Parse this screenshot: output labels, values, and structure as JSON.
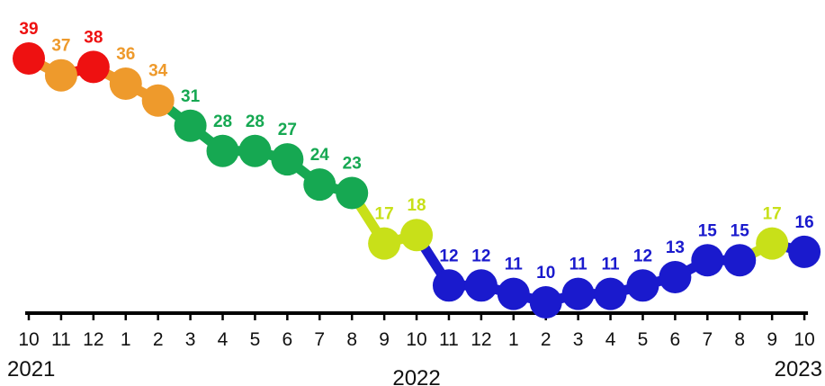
{
  "chart_data": {
    "type": "line",
    "categories": [
      "10",
      "11",
      "12",
      "1",
      "2",
      "3",
      "4",
      "5",
      "6",
      "7",
      "8",
      "9",
      "10",
      "11",
      "12",
      "1",
      "2",
      "3",
      "4",
      "5",
      "6",
      "7",
      "8",
      "9",
      "10"
    ],
    "values": [
      39,
      37,
      38,
      36,
      34,
      31,
      28,
      28,
      27,
      24,
      23,
      17,
      18,
      12,
      12,
      11,
      10,
      11,
      11,
      12,
      13,
      15,
      15,
      17,
      16
    ],
    "point_colors": [
      "#ee1111",
      "#ee9a2c",
      "#ee1111",
      "#ee9a2c",
      "#ee9a2c",
      "#16a852",
      "#16a852",
      "#16a852",
      "#16a852",
      "#16a852",
      "#16a852",
      "#c8e019",
      "#c8e019",
      "#1a1acd",
      "#1a1acd",
      "#1a1acd",
      "#1a1acd",
      "#1a1acd",
      "#1a1acd",
      "#1a1acd",
      "#1a1acd",
      "#1a1acd",
      "#1a1acd",
      "#c8e019",
      "#1a1acd"
    ],
    "years": [
      {
        "label": "2021",
        "index": 0
      },
      {
        "label": "2022",
        "index": 12
      },
      {
        "label": "2023",
        "index": 24
      }
    ],
    "ylim": [
      10,
      39
    ],
    "grid": false,
    "legend": "none",
    "title": "",
    "xlabel": "",
    "ylabel": ""
  }
}
